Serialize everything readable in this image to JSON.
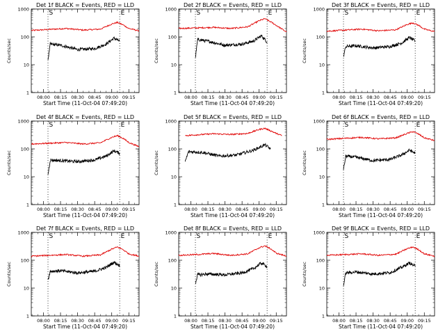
{
  "figure": {
    "panel_grid": "3x3",
    "colors": {
      "events": "#000000",
      "lld": "#e00000",
      "axes": "#000000",
      "background": "#ffffff"
    }
  },
  "chart_data": [
    {
      "type": "line",
      "title": "Det 1f BLACK = Events, RED = LLD",
      "xlabel": "Start Time (11-Oct-04 07:49:20)",
      "ylabel": "Counts/sec",
      "xlim": [
        "07:49:20",
        "09:24:00"
      ],
      "ylim": [
        1,
        1000
      ],
      "yscale": "log",
      "xticks": [
        "08:00",
        "08:15",
        "08:30",
        "08:45",
        "09:00",
        "09:15"
      ],
      "yticks": [
        "1",
        "10",
        "100",
        "1000"
      ],
      "markers": [
        {
          "time": "08:04",
          "label": "S"
        },
        {
          "time": "09:07",
          "label": "E"
        }
      ],
      "series": [
        {
          "color": "#e00000",
          "x": [
            "07:49:20",
            "08:05",
            "08:20",
            "08:35",
            "08:50",
            "09:00",
            "09:05",
            "09:10",
            "09:15",
            "09:24"
          ],
          "y": [
            170,
            185,
            200,
            175,
            190,
            290,
            330,
            270,
            200,
            165
          ]
        },
        {
          "color": "#000000",
          "x": [
            "08:04",
            "08:06",
            "08:15",
            "08:30",
            "08:45",
            "08:55",
            "09:02",
            "09:07"
          ],
          "y": [
            15,
            55,
            50,
            35,
            38,
            55,
            90,
            70
          ]
        }
      ]
    },
    {
      "type": "line",
      "title": "Det 2f BLACK = Events, RED = LLD",
      "xlabel": "Start Time (11-Oct-04 07:49:20)",
      "ylabel": "Counts/sec",
      "xlim": [
        "07:49:20",
        "09:24:00"
      ],
      "ylim": [
        1,
        1000
      ],
      "yscale": "log",
      "xticks": [
        "08:00",
        "08:15",
        "08:30",
        "08:45",
        "09:00",
        "09:15"
      ],
      "yticks": [
        "1",
        "10",
        "100",
        "1000"
      ],
      "markers": [
        {
          "time": "08:04",
          "label": "S"
        },
        {
          "time": "09:07",
          "label": "E"
        }
      ],
      "series": [
        {
          "color": "#e00000",
          "x": [
            "07:49:20",
            "08:05",
            "08:20",
            "08:35",
            "08:50",
            "09:00",
            "09:05",
            "09:10",
            "09:15",
            "09:24"
          ],
          "y": [
            200,
            210,
            220,
            200,
            230,
            380,
            450,
            350,
            260,
            150
          ]
        },
        {
          "color": "#000000",
          "x": [
            "08:04",
            "08:06",
            "08:15",
            "08:30",
            "08:45",
            "08:55",
            "09:02",
            "09:07"
          ],
          "y": [
            18,
            80,
            70,
            50,
            55,
            70,
            110,
            65
          ]
        }
      ]
    },
    {
      "type": "line",
      "title": "Det 3f BLACK = Events, RED = LLD",
      "xlabel": "Start Time (11-Oct-04 07:49:20)",
      "ylabel": "Counts/sec",
      "xlim": [
        "07:49:20",
        "09:24:00"
      ],
      "ylim": [
        1,
        1000
      ],
      "yscale": "log",
      "xticks": [
        "08:00",
        "08:15",
        "08:30",
        "08:45",
        "09:00",
        "09:15"
      ],
      "yticks": [
        "1",
        "10",
        "100",
        "1000"
      ],
      "markers": [
        {
          "time": "08:04",
          "label": "S"
        },
        {
          "time": "09:07",
          "label": "E"
        }
      ],
      "series": [
        {
          "color": "#e00000",
          "x": [
            "07:49:20",
            "08:05",
            "08:20",
            "08:35",
            "08:50",
            "09:00",
            "09:05",
            "09:10",
            "09:15",
            "09:24"
          ],
          "y": [
            160,
            175,
            190,
            165,
            180,
            280,
            320,
            260,
            190,
            155
          ]
        },
        {
          "color": "#000000",
          "x": [
            "08:04",
            "08:06",
            "08:15",
            "08:30",
            "08:45",
            "08:55",
            "09:02",
            "09:07"
          ],
          "y": [
            20,
            45,
            48,
            40,
            45,
            60,
            95,
            70
          ]
        }
      ]
    },
    {
      "type": "line",
      "title": "Det 4f BLACK = Events, RED = LLD",
      "xlabel": "Start Time (11-Oct-04 07:49:20)",
      "ylabel": "Counts/sec",
      "xlim": [
        "07:49:20",
        "09:24:00"
      ],
      "ylim": [
        1,
        1000
      ],
      "yscale": "log",
      "xticks": [
        "08:00",
        "08:15",
        "08:30",
        "08:45",
        "09:00",
        "09:15"
      ],
      "yticks": [
        "1",
        "10",
        "100",
        "1000"
      ],
      "markers": [
        {
          "time": "08:04",
          "label": "S"
        },
        {
          "time": "09:07",
          "label": "E"
        }
      ],
      "series": [
        {
          "color": "#e00000",
          "x": [
            "07:49:20",
            "08:05",
            "08:20",
            "08:35",
            "08:50",
            "09:00",
            "09:05",
            "09:10",
            "09:15",
            "09:24"
          ],
          "y": [
            150,
            160,
            170,
            150,
            165,
            260,
            300,
            240,
            170,
            120
          ]
        },
        {
          "color": "#000000",
          "x": [
            "08:04",
            "08:06",
            "08:15",
            "08:30",
            "08:45",
            "08:55",
            "09:02",
            "09:07"
          ],
          "y": [
            12,
            40,
            38,
            35,
            40,
            55,
            85,
            70
          ]
        }
      ]
    },
    {
      "type": "line",
      "title": "Det 5f BLACK = Events, RED = LLD",
      "xlabel": "Start Time (11-Oct-04 07:49:20)",
      "ylabel": "Counts/sec",
      "xlim": [
        "07:49:20",
        "09:24:00"
      ],
      "ylim": [
        1,
        1000
      ],
      "yscale": "log",
      "xticks": [
        "08:00",
        "08:15",
        "08:30",
        "08:45",
        "09:00",
        "09:15"
      ],
      "yticks": [
        "1",
        "10",
        "100",
        "1000"
      ],
      "markers": [],
      "series": [
        {
          "color": "#e00000",
          "x": [
            "07:55",
            "08:05",
            "08:20",
            "08:35",
            "08:50",
            "09:00",
            "09:05",
            "09:10",
            "09:15",
            "09:20"
          ],
          "y": [
            300,
            320,
            350,
            330,
            360,
            500,
            550,
            450,
            360,
            300
          ]
        },
        {
          "color": "#000000",
          "x": [
            "07:55",
            "07:58",
            "08:10",
            "08:25",
            "08:40",
            "08:55",
            "09:05",
            "09:10"
          ],
          "y": [
            35,
            80,
            75,
            55,
            60,
            90,
            140,
            100
          ]
        }
      ]
    },
    {
      "type": "line",
      "title": "Det 6f BLACK = Events, RED = LLD",
      "xlabel": "Start Time (11-Oct-04 07:49:20)",
      "ylabel": "Counts/sec",
      "xlim": [
        "07:49:20",
        "09:24:00"
      ],
      "ylim": [
        1,
        1000
      ],
      "yscale": "log",
      "xticks": [
        "08:00",
        "08:15",
        "08:30",
        "08:45",
        "09:00",
        "09:15"
      ],
      "yticks": [
        "1",
        "10",
        "100",
        "1000"
      ],
      "markers": [
        {
          "time": "08:04",
          "label": "S"
        },
        {
          "time": "09:07",
          "label": "E"
        }
      ],
      "series": [
        {
          "color": "#e00000",
          "x": [
            "07:49:20",
            "08:05",
            "08:20",
            "08:35",
            "08:50",
            "09:00",
            "09:05",
            "09:10",
            "09:15",
            "09:24"
          ],
          "y": [
            220,
            240,
            260,
            230,
            250,
            360,
            420,
            340,
            250,
            200
          ]
        },
        {
          "color": "#000000",
          "x": [
            "08:04",
            "08:06",
            "08:15",
            "08:30",
            "08:45",
            "08:55",
            "09:02",
            "09:07"
          ],
          "y": [
            18,
            55,
            50,
            38,
            42,
            60,
            90,
            70
          ]
        }
      ]
    },
    {
      "type": "line",
      "title": "Det 7f BLACK = Events, RED = LLD",
      "xlabel": "Start Time (11-Oct-04 07:49:20)",
      "ylabel": "Counts/sec",
      "xlim": [
        "07:49:20",
        "09:24:00"
      ],
      "ylim": [
        1,
        1000
      ],
      "yscale": "log",
      "xticks": [
        "08:00",
        "08:15",
        "08:30",
        "08:45",
        "09:00",
        "09:15"
      ],
      "yticks": [
        "1",
        "10",
        "100",
        "1000"
      ],
      "markers": [
        {
          "time": "08:04",
          "label": "S"
        },
        {
          "time": "09:07",
          "label": "E"
        }
      ],
      "series": [
        {
          "color": "#e00000",
          "x": [
            "07:49:20",
            "08:05",
            "08:20",
            "08:35",
            "08:50",
            "09:00",
            "09:05",
            "09:10",
            "09:15",
            "09:24"
          ],
          "y": [
            140,
            150,
            160,
            140,
            155,
            250,
            300,
            240,
            170,
            140
          ]
        },
        {
          "color": "#000000",
          "x": [
            "08:04",
            "08:06",
            "08:15",
            "08:30",
            "08:45",
            "08:55",
            "09:02",
            "09:07"
          ],
          "y": [
            20,
            40,
            42,
            35,
            40,
            55,
            85,
            65
          ]
        }
      ]
    },
    {
      "type": "line",
      "title": "Det 8f BLACK = Events, RED = LLD",
      "xlabel": "Start Time (11-Oct-04 07:49:20)",
      "ylabel": "Counts/sec",
      "xlim": [
        "07:49:20",
        "09:24:00"
      ],
      "ylim": [
        1,
        1000
      ],
      "yscale": "log",
      "xticks": [
        "08:00",
        "08:15",
        "08:30",
        "08:45",
        "09:00",
        "09:15"
      ],
      "yticks": [
        "1",
        "10",
        "100",
        "1000"
      ],
      "markers": [
        {
          "time": "08:04",
          "label": "S"
        },
        {
          "time": "09:07",
          "label": "E"
        }
      ],
      "series": [
        {
          "color": "#e00000",
          "x": [
            "07:49:20",
            "08:05",
            "08:20",
            "08:35",
            "08:50",
            "09:00",
            "09:05",
            "09:10",
            "09:15",
            "09:24"
          ],
          "y": [
            150,
            160,
            175,
            150,
            170,
            280,
            330,
            260,
            180,
            140
          ]
        },
        {
          "color": "#000000",
          "x": [
            "08:04",
            "08:06",
            "08:15",
            "08:30",
            "08:45",
            "08:55",
            "09:02",
            "09:07"
          ],
          "y": [
            15,
            30,
            32,
            30,
            35,
            50,
            80,
            60
          ]
        }
      ]
    },
    {
      "type": "line",
      "title": "Det 9f BLACK = Events, RED = LLD",
      "xlabel": "Start Time (11-Oct-04 07:49:20)",
      "ylabel": "Counts/sec",
      "xlim": [
        "07:49:20",
        "09:24:00"
      ],
      "ylim": [
        1,
        1000
      ],
      "yscale": "log",
      "xticks": [
        "08:00",
        "08:15",
        "08:30",
        "08:45",
        "09:00",
        "09:15"
      ],
      "yticks": [
        "1",
        "10",
        "100",
        "1000"
      ],
      "markers": [
        {
          "time": "08:04",
          "label": "S"
        },
        {
          "time": "09:07",
          "label": "E"
        }
      ],
      "series": [
        {
          "color": "#e00000",
          "x": [
            "07:49:20",
            "08:05",
            "08:20",
            "08:35",
            "08:50",
            "09:00",
            "09:05",
            "09:10",
            "09:15",
            "09:24"
          ],
          "y": [
            150,
            160,
            170,
            150,
            165,
            260,
            300,
            240,
            170,
            140
          ]
        },
        {
          "color": "#000000",
          "x": [
            "08:04",
            "08:06",
            "08:15",
            "08:30",
            "08:45",
            "08:55",
            "09:02",
            "09:07"
          ],
          "y": [
            12,
            35,
            38,
            32,
            36,
            55,
            80,
            60
          ]
        }
      ]
    }
  ]
}
